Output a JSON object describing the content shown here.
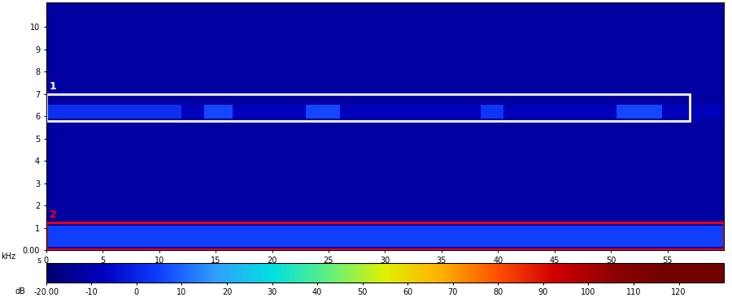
{
  "chart_data": {
    "type": "heatmap",
    "xlabel": "s",
    "ylabel": "kHz",
    "xlim": [
      0,
      60
    ],
    "ylim": [
      0,
      11.1
    ],
    "xticks": [
      0,
      5,
      10,
      15,
      20,
      25,
      30,
      35,
      40,
      45,
      50,
      55
    ],
    "yticks": [
      {
        "value": 0,
        "label": "0.00"
      },
      1,
      2,
      3,
      4,
      5,
      6,
      7,
      8,
      9,
      10
    ],
    "x_edges": [
      0,
      12,
      14,
      16.5,
      23,
      26,
      38.5,
      40.5,
      50.5,
      54.5,
      60
    ],
    "y_edges": [
      0,
      0.15,
      1.1,
      5.9,
      6.5,
      11.1
    ],
    "cells": [
      [
        -10,
        -10,
        -10,
        -10,
        -10,
        -10,
        -10,
        -10,
        -10,
        -10
      ],
      [
        5,
        5,
        5,
        5,
        5,
        5,
        5,
        5,
        5,
        5
      ],
      [
        -12,
        -12,
        -12,
        -12,
        -12,
        -12,
        -12,
        -12,
        -12,
        -12
      ],
      [
        2,
        -8,
        6,
        -8,
        6,
        -8,
        3,
        -8,
        6,
        -8
      ],
      [
        -12,
        -12,
        -12,
        -12,
        -12,
        -12,
        -12,
        -12,
        -12,
        -12
      ]
    ],
    "colorbar": {
      "label": "dB",
      "range": [
        -20,
        130
      ],
      "ticks": [
        {
          "value": -20,
          "label": "-20.00"
        },
        -10,
        0,
        10,
        20,
        30,
        40,
        50,
        60,
        70,
        80,
        90,
        100,
        110,
        120
      ]
    },
    "regions": [
      {
        "label": "1",
        "x": [
          0,
          57
        ],
        "y": [
          5.8,
          7.0
        ],
        "color": "white"
      },
      {
        "label": "2",
        "x": [
          0,
          60
        ],
        "y": [
          0.05,
          1.25
        ],
        "color": "red"
      }
    ]
  }
}
